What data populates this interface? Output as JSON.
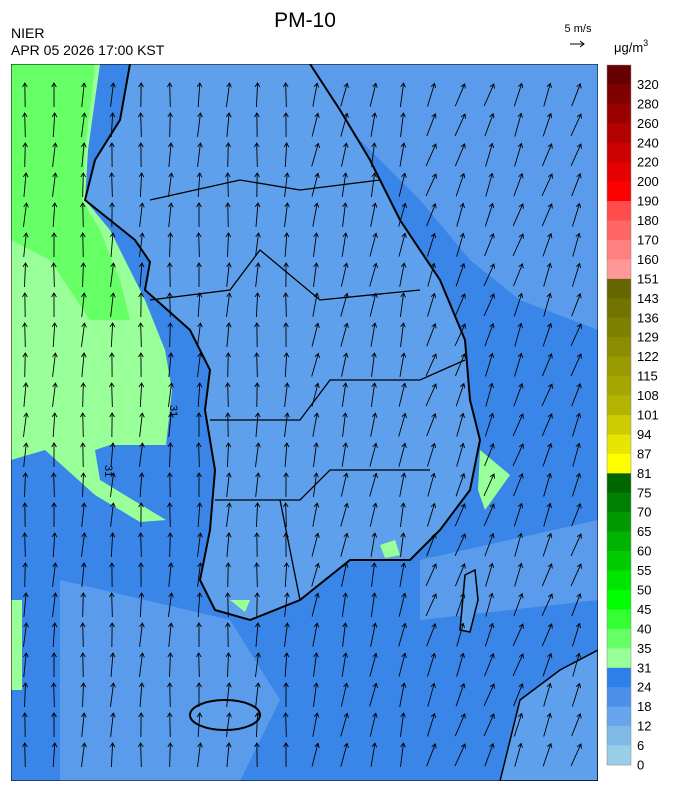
{
  "header": {
    "title": "PM-10",
    "agency": "NIER",
    "datetime": "APR 05 2026 17:00 KST",
    "wind_scale": "5 m/s"
  },
  "map": {
    "contour_labels": [
      "31",
      "31"
    ]
  },
  "colorbar": {
    "unit": {
      "base": "μg/m",
      "sup": "3"
    },
    "labels": [
      320,
      280,
      260,
      240,
      220,
      200,
      190,
      180,
      170,
      160,
      151,
      143,
      136,
      129,
      122,
      115,
      108,
      101,
      94,
      87,
      81,
      75,
      70,
      65,
      60,
      55,
      50,
      45,
      40,
      35,
      31,
      24,
      18,
      12,
      6,
      0
    ],
    "colors": [
      "#660000",
      "#800000",
      "#990000",
      "#b30000",
      "#cc0000",
      "#e60000",
      "#ff0000",
      "#ff4d4d",
      "#ff6666",
      "#ff8080",
      "#ff9999",
      "#666600",
      "#737300",
      "#808000",
      "#8c8c00",
      "#999900",
      "#a6a600",
      "#b3b300",
      "#cccc00",
      "#e6e600",
      "#ffff00",
      "#006600",
      "#008000",
      "#009900",
      "#00b300",
      "#00cc00",
      "#00e600",
      "#00ff00",
      "#33ff33",
      "#66ff66",
      "#99ff99",
      "#2f7fe8",
      "#4a90ea",
      "#67a6ec",
      "#80bbe8",
      "#99cfe6"
    ]
  }
}
